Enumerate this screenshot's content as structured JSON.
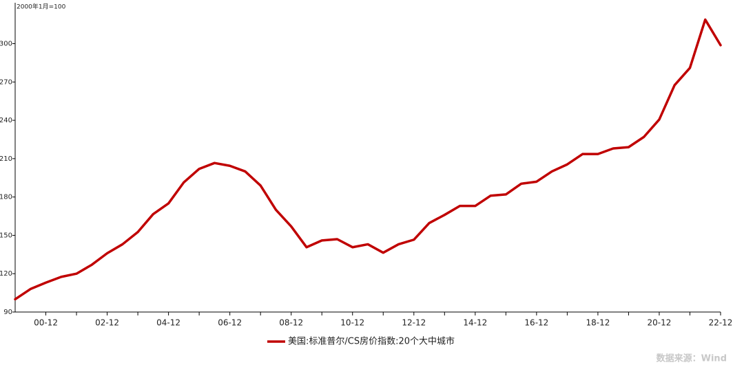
{
  "chart_data": {
    "type": "line",
    "y_label": "2000年1月=100",
    "categories": [
      null,
      null,
      "00-12",
      null,
      null,
      null,
      "02-12",
      null,
      null,
      null,
      "04-12",
      null,
      null,
      null,
      "06-12",
      null,
      null,
      null,
      "08-12",
      null,
      null,
      null,
      "10-12",
      null,
      null,
      null,
      "12-12",
      null,
      null,
      null,
      "14-12",
      null,
      null,
      null,
      "16-12",
      null,
      null,
      null,
      "18-12",
      null,
      null,
      null,
      "20-12",
      null,
      null,
      null,
      "22-12"
    ],
    "series": [
      {
        "name": "美国:标准普尔/CS房价指数:20个大中城市",
        "color": "#c00000",
        "values": [
          100,
          108,
          113,
          117.5,
          120,
          127,
          136,
          143,
          152.6,
          166.6,
          175,
          191.5,
          202,
          206.6,
          204.4,
          200,
          189,
          170,
          157,
          140.7,
          146,
          147,
          140.7,
          143,
          136.4,
          143,
          146.6,
          159.6,
          166,
          173,
          173,
          181,
          182,
          190.4,
          192,
          200,
          205.5,
          213.6,
          213.6,
          218,
          219,
          227,
          240.6,
          267.5,
          281,
          318.8,
          298.8
        ]
      }
    ],
    "ylim": [
      90,
      332
    ],
    "yticks": [
      90,
      120,
      150,
      180,
      210,
      240,
      270,
      300
    ],
    "source": "数据来源：Wind"
  }
}
